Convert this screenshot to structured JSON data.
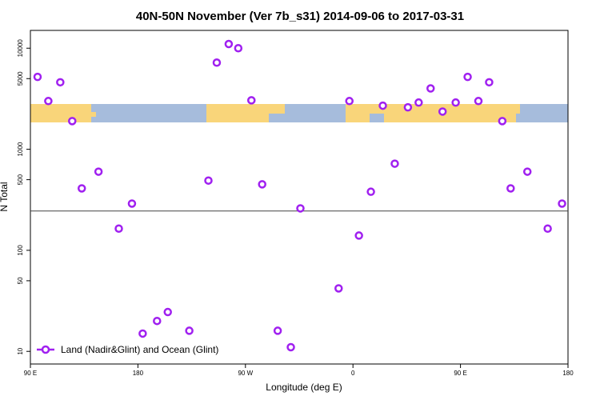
{
  "chart_data": {
    "type": "scatter",
    "title": "40N-50N November (Ver 7b_s31)   2014-09-06 to 2017-03-31",
    "x_label": "Longitude (deg E)",
    "y_label": "N Total",
    "log_y": true,
    "grid": false,
    "legend": "bottom-left",
    "xlim": [
      90,
      540
    ],
    "ylim": [
      7.5,
      15000
    ],
    "xticks": [
      {
        "value": 90,
        "label": "90 E"
      },
      180,
      {
        "value": 270,
        "label": "90 W"
      },
      {
        "value": 360,
        "label": "0"
      },
      {
        "value": 450,
        "label": "90 E"
      },
      {
        "value": 540,
        "label": "180"
      }
    ],
    "yticks": [
      10,
      50,
      100,
      500,
      1000,
      5000,
      10000
    ],
    "reference_line": 245,
    "series": [
      {
        "name": "Land (Nadir&Glint) and Ocean (Glint)",
        "color": "#a020f0",
        "x": [
          96,
          105,
          115,
          125,
          133,
          147,
          164,
          175,
          184,
          196,
          205,
          223,
          239,
          246,
          256,
          264,
          275,
          284,
          297,
          308,
          316,
          348,
          357,
          365,
          375,
          385,
          395,
          406,
          415,
          425,
          435,
          446,
          456,
          465,
          474,
          485,
          492,
          506,
          523,
          535
        ],
        "values": [
          5200,
          3000,
          4600,
          1900,
          410,
          600,
          164,
          290,
          15,
          20,
          24.5,
          16,
          490,
          7200,
          11000,
          10000,
          3050,
          450,
          16,
          11,
          260,
          42,
          3000,
          140,
          380,
          2700,
          720,
          2600,
          2900,
          4000,
          2360,
          2900,
          5200,
          3000,
          4600,
          1900,
          410,
          600,
          164,
          290
        ]
      }
    ]
  }
}
